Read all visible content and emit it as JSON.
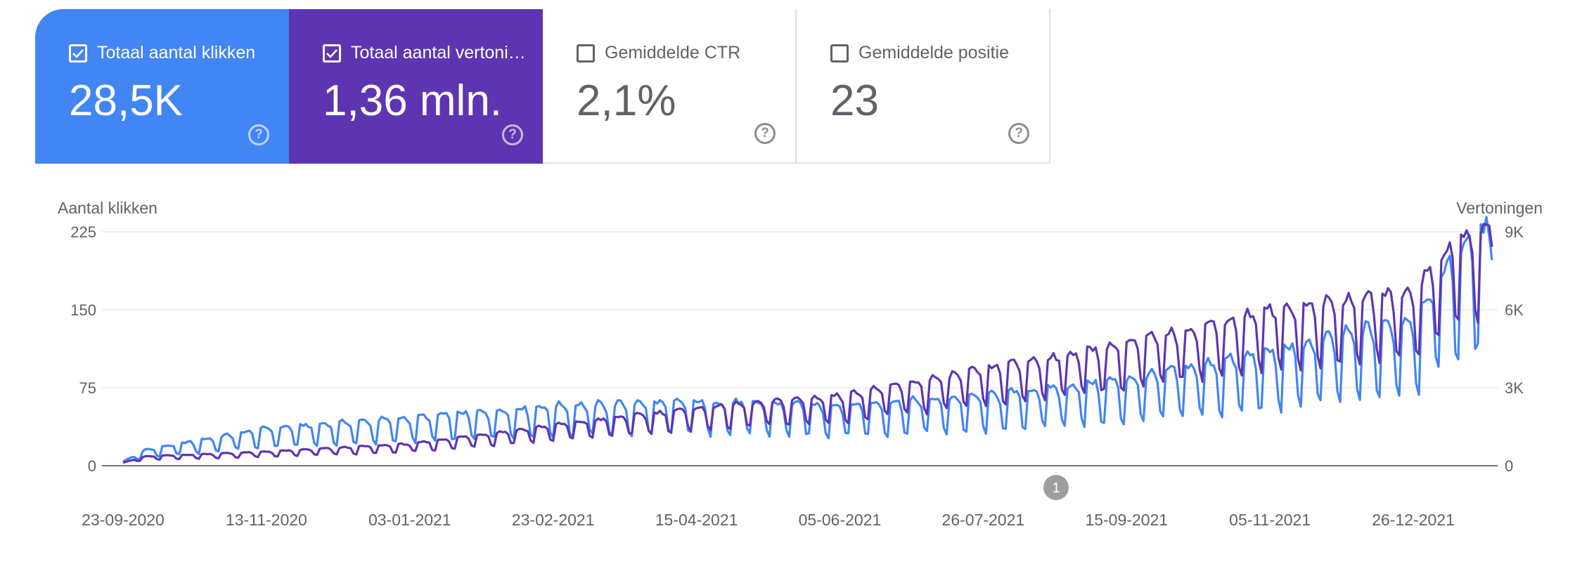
{
  "cards": [
    {
      "label": "Totaal aantal klikken",
      "value": "28,5K",
      "checked": true,
      "color": "#4285f4"
    },
    {
      "label": "Totaal aantal vertoningen",
      "value": "1,36 mln.",
      "checked": true,
      "color": "#5e35b1"
    },
    {
      "label": "Gemiddelde CTR",
      "value": "2,1%",
      "checked": false
    },
    {
      "label": "Gemiddelde positie",
      "value": "23",
      "checked": false
    }
  ],
  "annotation_marker": "1",
  "chart_data": {
    "type": "line",
    "y_left_label": "Aantal klikken",
    "y_right_label": "Vertoningen",
    "y_left_ticks": [
      "0",
      "75",
      "150",
      "225"
    ],
    "y_right_ticks": [
      "0",
      "3K",
      "6K",
      "9K"
    ],
    "y_left_range": [
      0,
      225
    ],
    "y_right_range": [
      0,
      9000
    ],
    "x_range": [
      "2020-09-23",
      "2022-01-23"
    ],
    "x_tick_labels": [
      "23-09-2020",
      "13-11-2020",
      "03-01-2021",
      "23-02-2021",
      "15-04-2021",
      "05-06-2021",
      "26-07-2021",
      "15-09-2021",
      "05-11-2021",
      "26-12-2021"
    ],
    "grid": true,
    "series": [
      {
        "name": "Totaal aantal klikken",
        "axis": "left",
        "color": "#4285f4",
        "base_points": [
          {
            "x": "2020-09-23",
            "y": 3
          },
          {
            "x": "2020-10-01",
            "y": 12
          },
          {
            "x": "2020-11-13",
            "y": 28
          },
          {
            "x": "2021-01-03",
            "y": 36
          },
          {
            "x": "2021-02-23",
            "y": 45
          },
          {
            "x": "2021-04-15",
            "y": 48
          },
          {
            "x": "2021-06-05",
            "y": 45
          },
          {
            "x": "2021-07-26",
            "y": 52
          },
          {
            "x": "2021-09-15",
            "y": 65
          },
          {
            "x": "2021-11-05",
            "y": 85
          },
          {
            "x": "2021-12-26",
            "y": 110
          },
          {
            "x": "2022-01-10",
            "y": 160
          },
          {
            "x": "2022-01-23",
            "y": 180
          }
        ],
        "weekly_amplitude": 0.32
      },
      {
        "name": "Totaal aantal vertoningen",
        "axis": "right",
        "color": "#5e35b1",
        "base_points": [
          {
            "x": "2020-09-23",
            "y": 100
          },
          {
            "x": "2020-10-01",
            "y": 300
          },
          {
            "x": "2020-11-13",
            "y": 450
          },
          {
            "x": "2021-01-03",
            "y": 700
          },
          {
            "x": "2021-02-23",
            "y": 1300
          },
          {
            "x": "2021-04-15",
            "y": 1850
          },
          {
            "x": "2021-06-05",
            "y": 2250
          },
          {
            "x": "2021-07-26",
            "y": 3100
          },
          {
            "x": "2021-09-15",
            "y": 3950
          },
          {
            "x": "2021-11-05",
            "y": 5000
          },
          {
            "x": "2021-12-26",
            "y": 5600
          },
          {
            "x": "2022-01-10",
            "y": 7300
          },
          {
            "x": "2022-01-23",
            "y": 7600
          }
        ],
        "weekly_amplitude": 0.22
      }
    ]
  }
}
